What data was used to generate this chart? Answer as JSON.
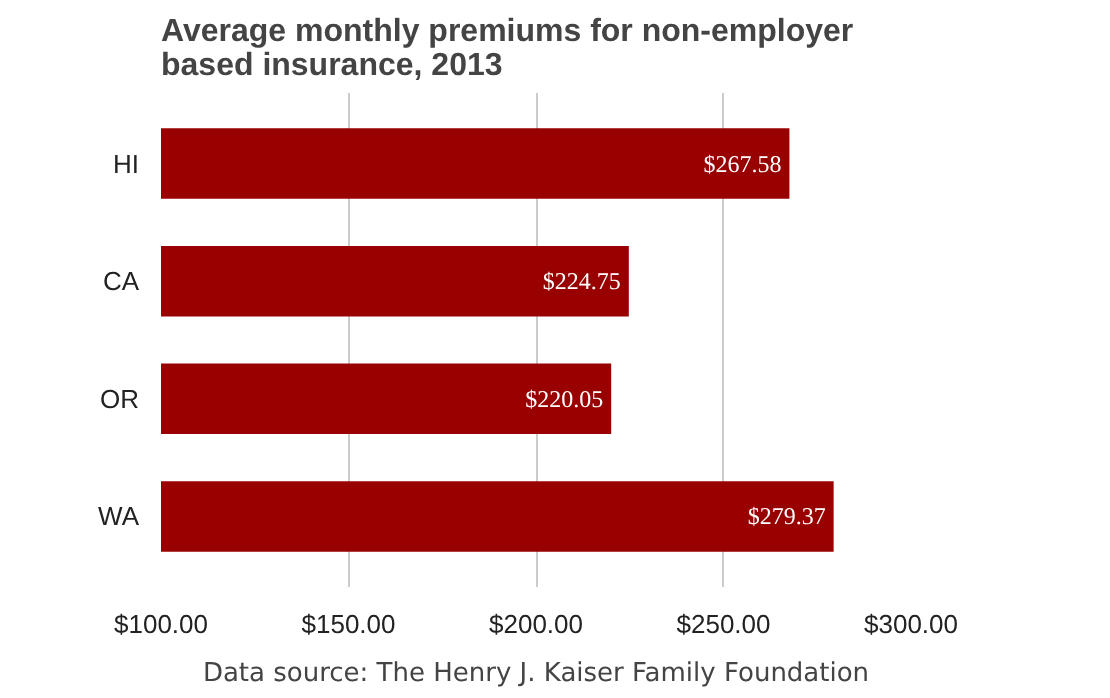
{
  "chart_data": {
    "type": "bar",
    "orientation": "horizontal",
    "title": "Average monthly premiums for non-employer\nbased insurance, 2013",
    "categories": [
      "HI",
      "CA",
      "OR",
      "WA"
    ],
    "values": [
      267.58,
      224.75,
      220.05,
      279.37
    ],
    "color": "#990000",
    "value_labels": [
      "$267.58",
      "$224.75",
      "$220.05",
      "$279.37"
    ],
    "xlim": [
      100,
      300
    ],
    "xticks": [
      {
        "value": 100,
        "label": "$100.00"
      },
      {
        "value": 150,
        "label": "$150.00"
      },
      {
        "value": 200,
        "label": "$200.00"
      },
      {
        "value": 250,
        "label": "$250.00"
      },
      {
        "value": 300,
        "label": "$300.00"
      }
    ],
    "grid": "x",
    "annotations": [
      "Data source: The Henry J. Kaiser Family Foundation"
    ]
  }
}
